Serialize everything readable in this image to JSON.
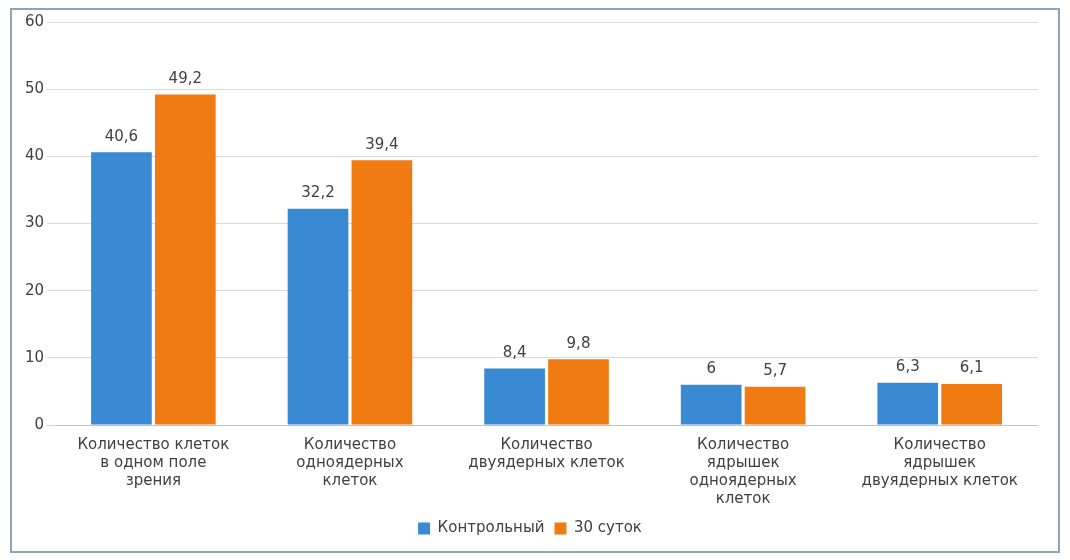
{
  "chart_data": {
    "type": "bar",
    "categories": [
      "Количество клеток в одном поле зрения",
      "Количество одноядерных клеток",
      "Количество двуядерных клеток",
      "Количество ядрышек одноядерных клеток",
      "Количество ядрышек двуядерных клеток"
    ],
    "series": [
      {
        "name": "Контрольный",
        "color": "#3a8ad3",
        "values": [
          40.6,
          32.2,
          8.4,
          6,
          6.3
        ],
        "value_labels": [
          "40,6",
          "32,2",
          "8,4",
          "6",
          "6,3"
        ]
      },
      {
        "name": "30 суток",
        "color": "#f07b12",
        "values": [
          49.2,
          39.4,
          9.8,
          5.7,
          6.1
        ],
        "value_labels": [
          "49,2",
          "39,4",
          "9,8",
          "5,7",
          "6,1"
        ]
      }
    ],
    "ylim": [
      0,
      60
    ],
    "yticks": [
      0,
      10,
      20,
      30,
      40,
      50,
      60
    ],
    "grid": "y",
    "legend": "bottom"
  }
}
